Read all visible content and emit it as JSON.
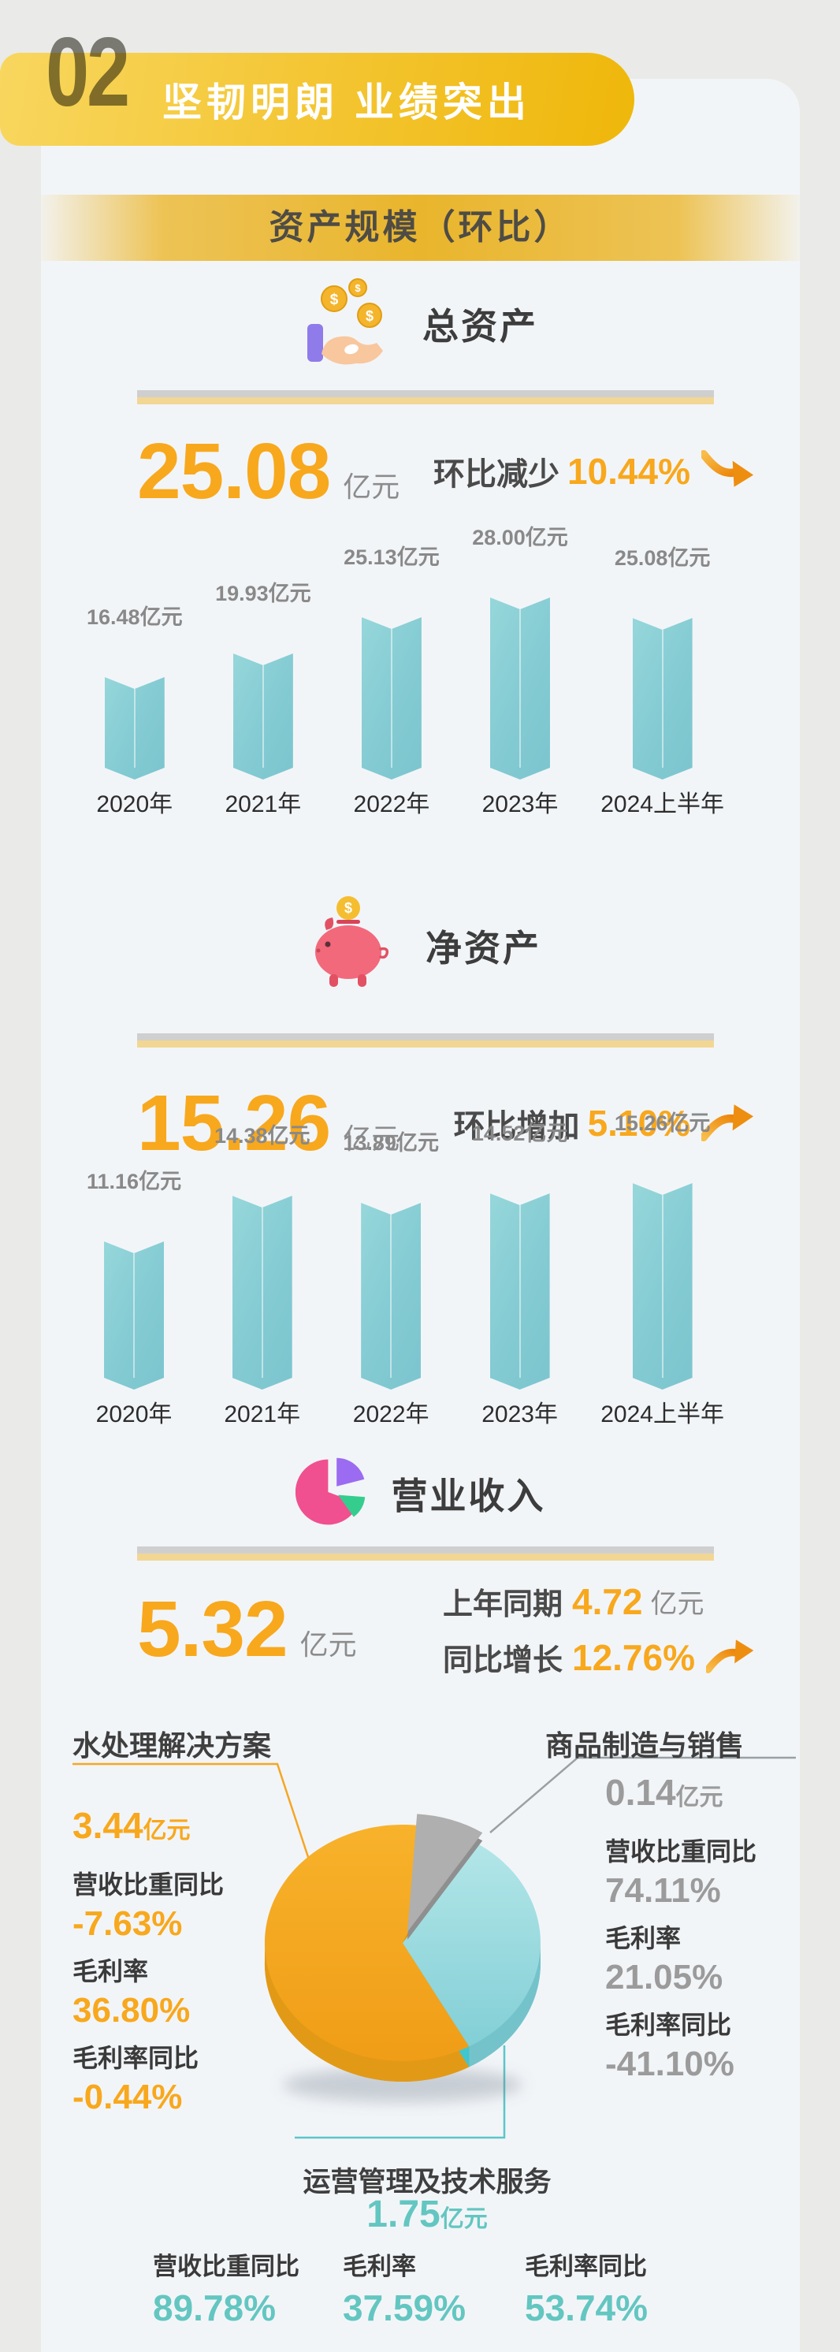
{
  "header": {
    "number": "02",
    "title": "坚韧明朗 业绩突出"
  },
  "banner": {
    "title": "资产规模（环比）"
  },
  "sections": {
    "total_assets": {
      "title": "总资产",
      "value": "25.08",
      "unit": "亿元",
      "change_label": "环比减少",
      "change_value": "10.44%",
      "trend": "down"
    },
    "net_assets": {
      "title": "净资产",
      "value": "15.26",
      "unit": "亿元",
      "change_label": "环比增加",
      "change_value": "5.10%",
      "trend": "up"
    },
    "revenue": {
      "title": "营业收入",
      "value": "5.32",
      "unit": "亿元",
      "prev_label": "上年同期",
      "prev_value": "4.72",
      "prev_unit": "亿元",
      "growth_label": "同比增长",
      "growth_value": "12.76%",
      "trend": "up"
    }
  },
  "segments": {
    "water": {
      "title": "水处理解决方案",
      "value": "3.44",
      "unit": "亿元",
      "stats": [
        {
          "label": "营收比重同比",
          "value": "-7.63%"
        },
        {
          "label": "毛利率",
          "value": "36.80%"
        },
        {
          "label": "毛利率同比",
          "value": "-0.44%"
        }
      ]
    },
    "goods": {
      "title": "商品制造与销售",
      "value": "0.14",
      "unit": "亿元",
      "stats": [
        {
          "label": "营收比重同比",
          "value": "74.11%"
        },
        {
          "label": "毛利率",
          "value": "21.05%"
        },
        {
          "label": "毛利率同比",
          "value": "-41.10%"
        }
      ]
    },
    "services": {
      "title": "运营管理及技术服务",
      "value": "1.75",
      "unit": "亿元",
      "stats": [
        {
          "label": "营收比重同比",
          "value": "89.78%"
        },
        {
          "label": "毛利率",
          "value": "37.59%"
        },
        {
          "label": "毛利率同比",
          "value": "53.74%"
        }
      ]
    }
  },
  "colors": {
    "accent_orange": "#F8A81D",
    "accent_teal": "#63C6C1",
    "value_gray": "#9B9B9B",
    "bar_teal": "#84CBD3",
    "banner_gold": "#EFB70A"
  },
  "icons": {
    "coins_in_hand": "coins-in-hand-icon",
    "piggy_bank": "piggy-bank-icon",
    "pie_chart": "pie-chart-icon",
    "arrow_down": "trend-down-arrow-icon",
    "arrow_up": "trend-up-arrow-icon"
  },
  "chart_data": [
    {
      "type": "bar",
      "title": "总资产",
      "unit": "亿元",
      "categories": [
        "2020年",
        "2021年",
        "2022年",
        "2023年",
        "2024上半年"
      ],
      "values": [
        16.48,
        19.93,
        25.13,
        28.0,
        25.08
      ],
      "ylim": [
        0,
        28
      ],
      "bar_color": "#84CBD3"
    },
    {
      "type": "bar",
      "title": "净资产",
      "unit": "亿元",
      "categories": [
        "2020年",
        "2021年",
        "2022年",
        "2023年",
        "2024上半年"
      ],
      "values": [
        11.16,
        14.38,
        13.89,
        14.52,
        15.26
      ],
      "ylim": [
        0,
        15.26
      ],
      "bar_color": "#84CBD3"
    },
    {
      "type": "pie",
      "title": "营业收入构成",
      "unit": "亿元",
      "labels": [
        "水处理解决方案",
        "商品制造与销售",
        "运营管理及技术服务"
      ],
      "values": [
        3.44,
        0.14,
        1.75
      ],
      "colors": [
        "#F6A821",
        "#ACACAC",
        "#9FDEE0"
      ]
    }
  ]
}
